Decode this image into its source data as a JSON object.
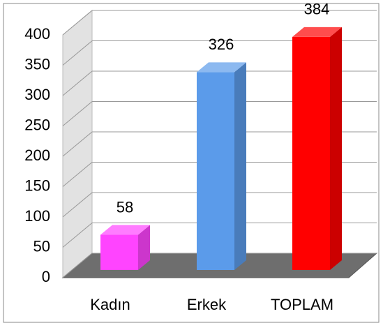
{
  "chart_data": {
    "type": "bar3d",
    "categories": [
      "Kadın",
      "Erkek",
      "TOPLAM"
    ],
    "values": [
      58,
      326,
      384
    ],
    "colors": [
      "#ff44ff",
      "#5b9bea",
      "#ff0000"
    ],
    "ylim": [
      0,
      400
    ],
    "yticks": [
      0,
      50,
      100,
      150,
      200,
      250,
      300,
      350,
      400
    ],
    "grid": true
  }
}
